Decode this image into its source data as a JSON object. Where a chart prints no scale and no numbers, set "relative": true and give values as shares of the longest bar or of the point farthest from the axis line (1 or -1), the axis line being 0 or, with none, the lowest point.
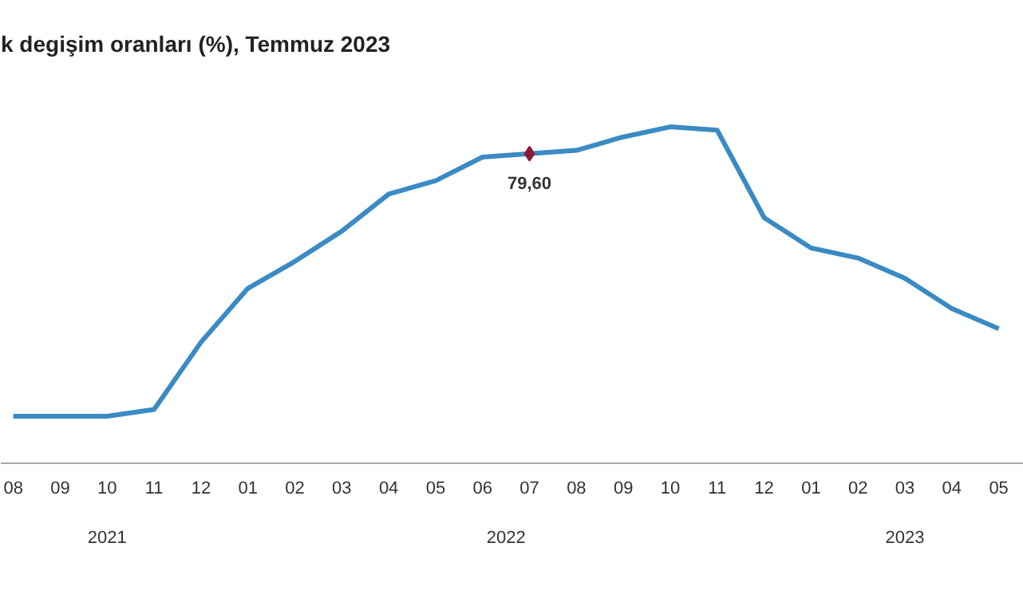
{
  "chart_data": {
    "type": "line",
    "title": "k degişim oranları (%), Temmuz 2023",
    "relative": true,
    "x": [
      "2021-08",
      "2021-09",
      "2021-10",
      "2021-11",
      "2021-12",
      "2022-01",
      "2022-02",
      "2022-03",
      "2022-04",
      "2022-05",
      "2022-06",
      "2022-07",
      "2022-08",
      "2022-09",
      "2022-10",
      "2022-11",
      "2022-12",
      "2023-01",
      "2023-02",
      "2023-03",
      "2023-04",
      "2023-05"
    ],
    "xlim": [
      "2021-07-23",
      "2023-05-17"
    ],
    "xticks": [
      {
        "value": "2021-08",
        "label": "08"
      },
      {
        "value": "2021-09",
        "label": "09"
      },
      {
        "value": "2021-10",
        "label": "10"
      },
      {
        "value": "2021-11",
        "label": "11"
      },
      {
        "value": "2021-12",
        "label": "12"
      },
      {
        "value": "2022-01",
        "label": "01"
      },
      {
        "value": "2022-02",
        "label": "02"
      },
      {
        "value": "2022-03",
        "label": "03"
      },
      {
        "value": "2022-04",
        "label": "04"
      },
      {
        "value": "2022-05",
        "label": "05"
      },
      {
        "value": "2022-06",
        "label": "06"
      },
      {
        "value": "2022-07",
        "label": "07"
      },
      {
        "value": "2022-08",
        "label": "08"
      },
      {
        "value": "2022-09",
        "label": "09"
      },
      {
        "value": "2022-10",
        "label": "10"
      },
      {
        "value": "2022-11",
        "label": "11"
      },
      {
        "value": "2022-12",
        "label": "12"
      },
      {
        "value": "2023-01",
        "label": "01"
      },
      {
        "value": "2023-02",
        "label": "02"
      },
      {
        "value": "2023-03",
        "label": "03"
      },
      {
        "value": "2023-04",
        "label": "04"
      },
      {
        "value": "2023-05",
        "label": "05"
      }
    ],
    "series": [
      {
        "color": "#3a8ac4",
        "values": [
          0.14,
          0.14,
          0.14,
          0.16,
          0.36,
          0.52,
          0.6,
          0.69,
          0.8,
          0.84,
          0.91,
          0.92,
          0.93,
          0.97,
          1.0,
          0.99,
          0.73,
          0.64,
          0.61,
          0.55,
          0.46,
          0.4
        ]
      },
      {
        "type": "scatter",
        "x": [
          "2022-07"
        ],
        "color": "#8b1a3a",
        "values": [
          0.92
        ]
      }
    ],
    "annotations": [
      {
        "text": "79,60",
        "x": "2022-07",
        "y": 0.92
      },
      "2021",
      "2022",
      "2023"
    ],
    "grid": false,
    "line_style": "solid",
    "tick_labels": "x"
  }
}
